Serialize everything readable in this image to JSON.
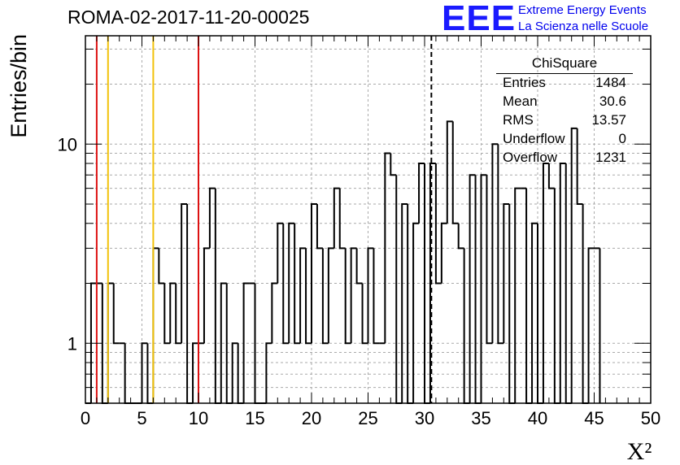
{
  "header": {
    "run_title": "ROMA-02-2017-11-20-00025"
  },
  "logo": {
    "mark": "EEE",
    "line1": "Extreme Energy Events",
    "line2": "La Scienza nelle Scuole",
    "color": "#0000ee"
  },
  "stats": {
    "title": "ChiSquare",
    "rows": [
      {
        "key": "Entries",
        "value": "1484"
      },
      {
        "key": "Mean",
        "value": "30.6"
      },
      {
        "key": "RMS",
        "value": "13.57"
      },
      {
        "key": "Underflow",
        "value": "0"
      },
      {
        "key": "Overflow",
        "value": "1231"
      }
    ]
  },
  "chart_data": {
    "type": "bar",
    "title": "ROMA-02-2017-11-20-00025",
    "xlabel": "X²",
    "ylabel": "Entries/bin",
    "xlim": [
      0,
      50
    ],
    "ylim": [
      0.5,
      35
    ],
    "y_scale": "log",
    "grid": true,
    "bin_width": 0.5,
    "x_ticks": [
      "0",
      "5",
      "10",
      "15",
      "20",
      "25",
      "30",
      "35",
      "40",
      "45",
      "50"
    ],
    "y_ticks": [
      "1",
      "10"
    ],
    "values": [
      0,
      2,
      2,
      0,
      2,
      1,
      1,
      0,
      0,
      0,
      1,
      0,
      3,
      2,
      1,
      2,
      1,
      5,
      0,
      1,
      1,
      3,
      6,
      0,
      2,
      0,
      1,
      0,
      2,
      2,
      0,
      0,
      1,
      2,
      4,
      1,
      4,
      1,
      3,
      1,
      5,
      3,
      1,
      3,
      6,
      3,
      1,
      3,
      2,
      1,
      3,
      1,
      1,
      9,
      7,
      0,
      5,
      0,
      4,
      8,
      0,
      8,
      2,
      4,
      13,
      4,
      3,
      0,
      7,
      0,
      7,
      1,
      10,
      1,
      5,
      0,
      6,
      6,
      0,
      4,
      0,
      8,
      6,
      0,
      8,
      0,
      12,
      5,
      0,
      3,
      3
    ],
    "reference_lines": [
      {
        "x": 1,
        "color": "#dd1111",
        "style": "solid"
      },
      {
        "x": 2,
        "color": "#f2c20a",
        "style": "solid"
      },
      {
        "x": 6,
        "color": "#f2c20a",
        "style": "solid"
      },
      {
        "x": 10,
        "color": "#dd1111",
        "style": "solid"
      },
      {
        "x": 30.6,
        "color": "#000000",
        "style": "dashed"
      }
    ],
    "colors": {
      "histogram": "#000000",
      "grid": "#aaaaaa"
    }
  }
}
